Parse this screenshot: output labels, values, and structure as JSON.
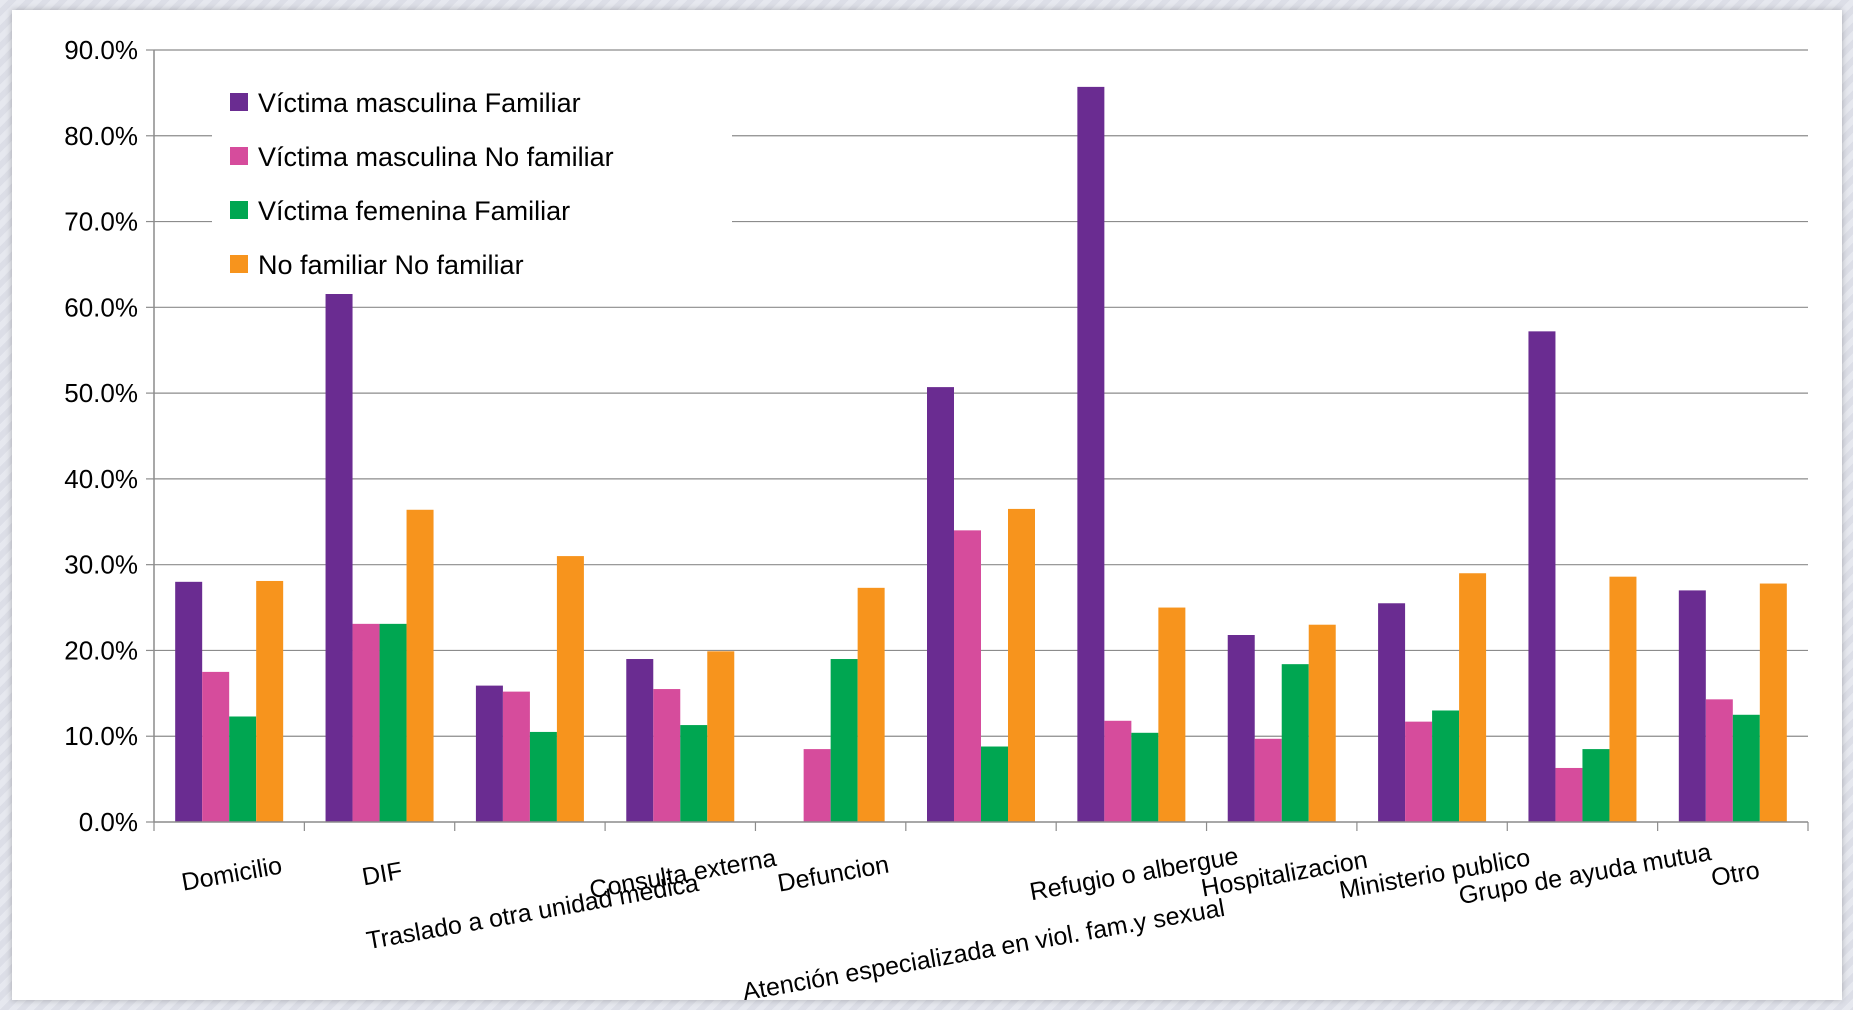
{
  "chart_data": {
    "type": "bar",
    "title": "",
    "xlabel": "",
    "ylabel": "",
    "ylim": [
      0,
      0.9
    ],
    "y_ticks": [
      "0.0%",
      "10.0%",
      "20.0%",
      "30.0%",
      "40.0%",
      "50.0%",
      "60.0%",
      "70.0%",
      "80.0%",
      "90.0%"
    ],
    "grid": true,
    "legend_position": "top-left",
    "categories": [
      "Domicilio",
      "DIF",
      "Traslado a otra unidad medica",
      "Consulta externa",
      "Defuncion",
      "Atención especializada en viol. fam.y sexual",
      "Refugio o albergue",
      "Hospitalizacion",
      "Ministerio publico",
      "Grupo de ayuda mutua",
      "Otro"
    ],
    "series": [
      {
        "name": "Víctima masculina Familiar",
        "color": "#6a2c91",
        "values": [
          0.28,
          0.622,
          0.159,
          0.19,
          0.0,
          0.507,
          0.857,
          0.218,
          0.255,
          0.572,
          0.27
        ]
      },
      {
        "name": "Víctima masculina No familiar",
        "color": "#d64c9c",
        "values": [
          0.175,
          0.231,
          0.152,
          0.155,
          0.085,
          0.34,
          0.118,
          0.097,
          0.117,
          0.063,
          0.143
        ]
      },
      {
        "name": "Víctima femenina Familiar",
        "color": "#00a651",
        "values": [
          0.123,
          0.231,
          0.105,
          0.113,
          0.19,
          0.088,
          0.104,
          0.184,
          0.13,
          0.085,
          0.125
        ]
      },
      {
        "name": "No familiar No familiar",
        "color": "#f7941d",
        "values": [
          0.281,
          0.364,
          0.31,
          0.199,
          0.273,
          0.365,
          0.25,
          0.23,
          0.29,
          0.286,
          0.278
        ]
      }
    ]
  }
}
